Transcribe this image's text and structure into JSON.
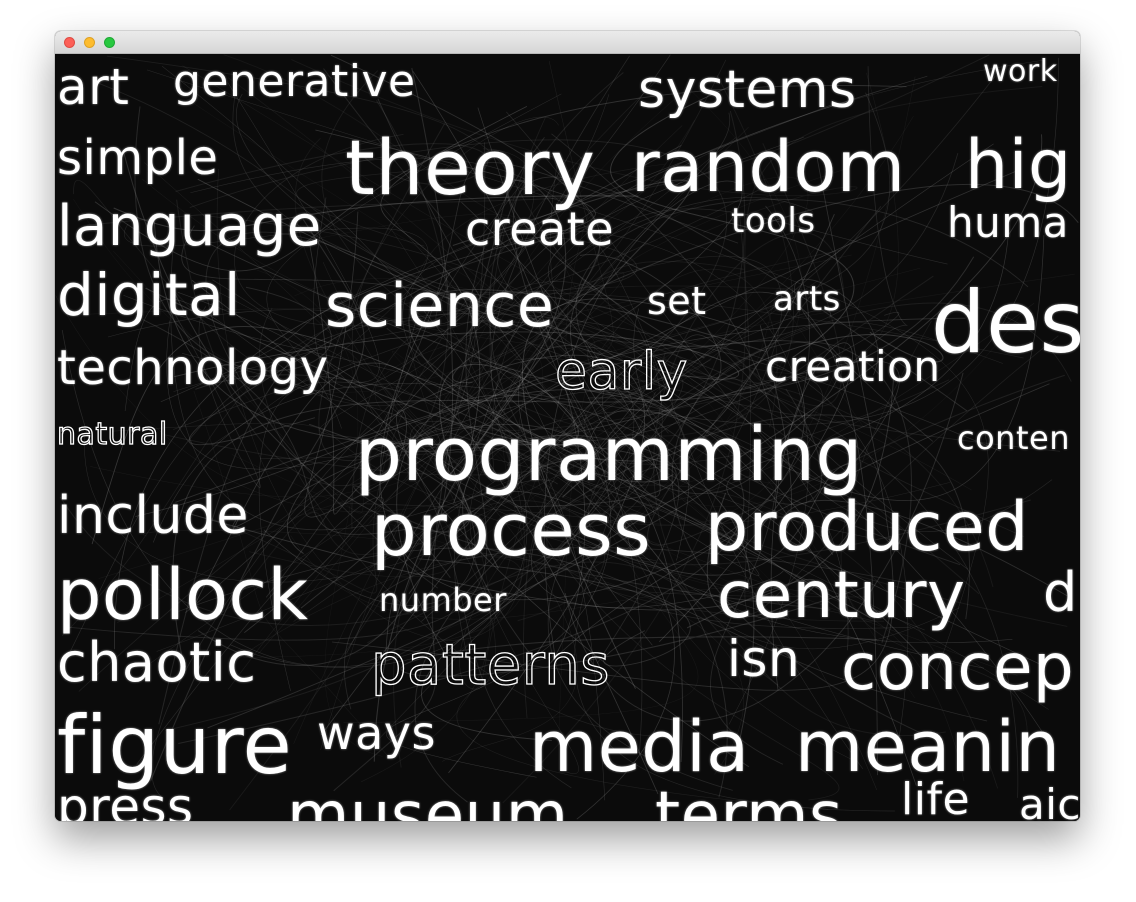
{
  "window": {
    "controls": [
      "close",
      "minimize",
      "zoom"
    ]
  },
  "colors": {
    "background": "#0b0b0b",
    "text": "#ffffff",
    "strands": "#9a9a9a"
  },
  "words": [
    {
      "text": "art",
      "style": "solid"
    },
    {
      "text": "generative",
      "style": "solid"
    },
    {
      "text": "systems",
      "style": "solid"
    },
    {
      "text": "work",
      "style": "solid"
    },
    {
      "text": "simple",
      "style": "solid"
    },
    {
      "text": "theory",
      "style": "solid"
    },
    {
      "text": "random",
      "style": "solid"
    },
    {
      "text": "hig",
      "style": "solid"
    },
    {
      "text": "language",
      "style": "solid"
    },
    {
      "text": "create",
      "style": "solid"
    },
    {
      "text": "tools",
      "style": "solid"
    },
    {
      "text": "huma",
      "style": "solid"
    },
    {
      "text": "digital",
      "style": "solid"
    },
    {
      "text": "science",
      "style": "solid"
    },
    {
      "text": "set",
      "style": "solid"
    },
    {
      "text": "arts",
      "style": "solid"
    },
    {
      "text": "des",
      "style": "solid"
    },
    {
      "text": "technology",
      "style": "solid"
    },
    {
      "text": "early",
      "style": "outline"
    },
    {
      "text": "creation",
      "style": "solid"
    },
    {
      "text": "natural",
      "style": "outline"
    },
    {
      "text": "programming",
      "style": "solid"
    },
    {
      "text": "conten",
      "style": "solid"
    },
    {
      "text": "include",
      "style": "solid"
    },
    {
      "text": "process",
      "style": "solid"
    },
    {
      "text": "produced",
      "style": "solid"
    },
    {
      "text": "pollock",
      "style": "solid"
    },
    {
      "text": "number",
      "style": "solid"
    },
    {
      "text": "century",
      "style": "solid"
    },
    {
      "text": "d",
      "style": "solid"
    },
    {
      "text": "chaotic",
      "style": "solid"
    },
    {
      "text": "patterns",
      "style": "outline"
    },
    {
      "text": "isn",
      "style": "solid"
    },
    {
      "text": "concep",
      "style": "solid"
    },
    {
      "text": "figure",
      "style": "solid"
    },
    {
      "text": "ways",
      "style": "solid"
    },
    {
      "text": "media",
      "style": "solid"
    },
    {
      "text": "meanin",
      "style": "solid"
    },
    {
      "text": "press",
      "style": "solid"
    },
    {
      "text": "museum",
      "style": "solid"
    },
    {
      "text": "terms",
      "style": "solid"
    },
    {
      "text": "life",
      "style": "solid"
    },
    {
      "text": "aic",
      "style": "solid"
    }
  ]
}
